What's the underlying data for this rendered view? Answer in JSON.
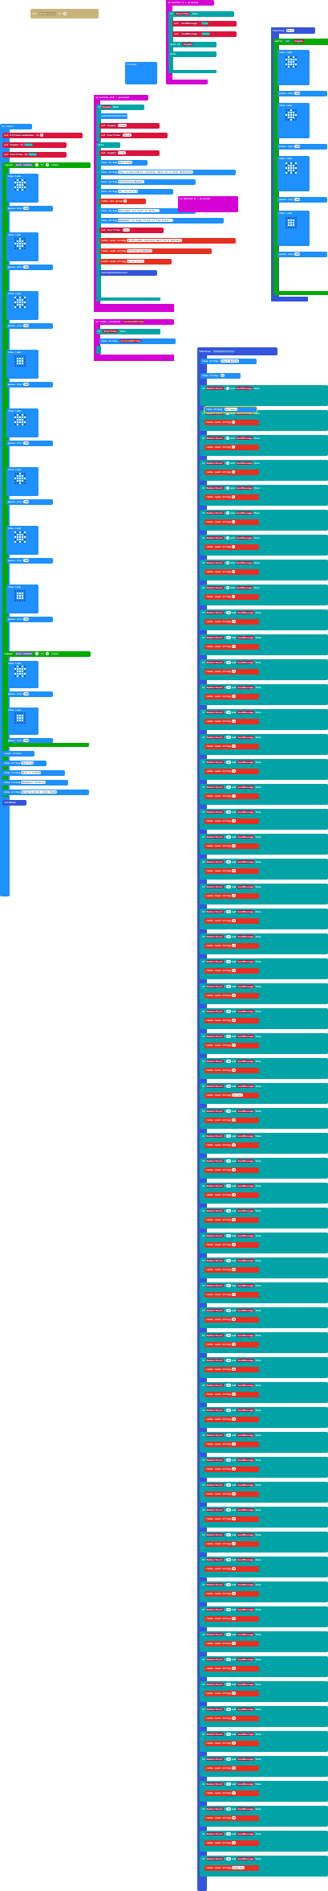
{
  "set_block": {
    "kw": "set",
    "var": "NumberCheck",
    "to": "to",
    "val": "0"
  },
  "on_start": {
    "header": "on start",
    "sets": [
      {
        "kw": "set",
        "var": "HitTheGreenNumber",
        "val": "0"
      },
      {
        "kw": "set",
        "var": "Ingame",
        "val": "false"
      },
      {
        "kw": "set",
        "var": "StartTime",
        "val": "false"
      }
    ],
    "repeat1": {
      "kw": "repeat",
      "var": "pick random",
      "from": "1",
      "to": "to",
      "val": "5",
      "times": "times",
      "do": "do"
    },
    "show_leds": "show leds",
    "pause": "pause (ms)",
    "pause_val": "100",
    "repeat2": {
      "kw": "repeat",
      "var": "pick random",
      "from": "1",
      "to": "to",
      "val": "5",
      "times": "times",
      "do": "do"
    },
    "clear": "clear screen",
    "strings": [
      {
        "kw": "show string",
        "val": "Starting"
      },
      {
        "kw": "show string",
        "val": "Wait a little"
      },
      {
        "kw": "show string",
        "val": "Remember buttons"
      },
      {
        "kw": "show string",
        "val": "Being a quick code check"
      }
    ],
    "call": "call",
    "call_fn": "Menu"
  },
  "on_button_a": {
    "header": "on button A ▾ pressed",
    "if": "if",
    "cond": "StartTime",
    "then": "then",
    "sets": [
      {
        "kw": "set",
        "var": "SendMessage",
        "val": "true"
      },
      {
        "kw": "set",
        "var": "SendMessage",
        "val": "false"
      }
    ],
    "else": "else",
    "else_if": "if",
    "ingame": "Ingame",
    "else2": "else"
  },
  "forever": {
    "header": "forever"
  },
  "menu_fn": {
    "header": "function",
    "name": "Menu",
    "while": "while",
    "not": "not",
    "var": "Ingame",
    "do": "do",
    "show_leds": "show leds",
    "pause": "pause (ms)",
    "pause_val": "100"
  },
  "on_button_ab": {
    "header": "on button A+B ▾ pressed",
    "if": "if",
    "var": "Ingame",
    "then": "then",
    "call": "call",
    "call_fn": "ChecksFunction",
    "sets": [
      {
        "kw": "set",
        "var": "Ingame",
        "val": "false"
      },
      {
        "kw": "set",
        "var": "StartTime",
        "val": "false"
      }
    ],
    "else": "else",
    "set_ingame": {
      "kw": "set",
      "var": "Ingame",
      "val": "true"
    },
    "strings": [
      {
        "kw": "show string",
        "val": "Wait time"
      },
      {
        "kw": "show string",
        "val": "then ss-MicroBits running. Wait on a size detection"
      },
      {
        "kw": "show string",
        "val": "HitTheGreenNumber"
      },
      {
        "kw": "show string",
        "val": "Ok, up to 1 d"
      }
    ],
    "radio_group": "radio set group",
    "radio_group_val": "1",
    "strings2": [
      {
        "kw": "show string",
        "val": "Messages are sent in bits..."
      },
      {
        "kw": "show string",
        "val": "Remember to keep track of the bits..."
      }
    ],
    "set_start": {
      "kw": "set",
      "var": "StartTime",
      "val": "true"
    },
    "radio_sends": [
      {
        "kw": "radio send string",
        "val": "Ok MicroBit Running Wait On A Detract"
      },
      {
        "kw": "radio send string",
        "val": "HitTheGreenNumber"
      },
      {
        "kw": "radio send string",
        "val": "Go on cycle"
      }
    ]
  },
  "on_button_b": {
    "header": "on button B ▾ pressed"
  },
  "on_radio": {
    "header": "on radio received",
    "param": "receivedString",
    "if": "if",
    "var": "StartTime",
    "then": "then",
    "show": "show string",
    "val": "receivedString"
  },
  "checks_fn": {
    "header": "function",
    "name": "ChecksFunction",
    "show_number": "show string",
    "show_val": "Start Button",
    "show2": "show string",
    "show2_val": "Go",
    "if": "if",
    "var": "NumberCheck",
    "eq": "=",
    "and": "and",
    "msg": "SendMessage",
    "then": "then",
    "say": "radio send string",
    "mid_string": "show string",
    "mid_val": "Success!",
    "rows": [
      {
        "n": "1",
        "s": "1"
      },
      {
        "n": "2",
        "s": "2"
      },
      {
        "n": "3",
        "s": "3"
      },
      {
        "n": "4",
        "s": "4"
      },
      {
        "n": "5",
        "s": "5"
      },
      {
        "n": "6",
        "s": "6"
      },
      {
        "n": "7",
        "s": "7"
      },
      {
        "n": "8",
        "s": "8"
      },
      {
        "n": "9",
        "s": "9"
      },
      {
        "n": "10",
        "s": "10"
      },
      {
        "n": "11",
        "s": "11"
      },
      {
        "n": "12",
        "s": "12"
      },
      {
        "n": "13",
        "s": "13"
      },
      {
        "n": "14",
        "s": "14"
      },
      {
        "n": "15",
        "s": "15"
      },
      {
        "n": "16",
        "s": "16"
      },
      {
        "n": "17",
        "s": "17"
      },
      {
        "n": "18",
        "s": "18"
      },
      {
        "n": "19",
        "s": "19"
      },
      {
        "n": "20",
        "s": "20"
      },
      {
        "n": "21",
        "s": "21"
      },
      {
        "n": "22",
        "s": "22"
      },
      {
        "n": "23",
        "s": "23"
      },
      {
        "n": "24",
        "s": "24"
      },
      {
        "n": "25",
        "s": "25"
      },
      {
        "n": "26",
        "s": "26"
      },
      {
        "n": "27",
        "s": "27"
      },
      {
        "n": "28",
        "s": "28"
      },
      {
        "n": "29",
        "s": "Correct"
      },
      {
        "n": "30",
        "s": "30"
      },
      {
        "n": "31",
        "s": "31"
      },
      {
        "n": "32",
        "s": "32"
      },
      {
        "n": "33",
        "s": "33"
      },
      {
        "n": "34",
        "s": "34"
      },
      {
        "n": "35",
        "s": "35"
      },
      {
        "n": "36",
        "s": "36"
      },
      {
        "n": "37",
        "s": "37"
      },
      {
        "n": "38",
        "s": "38"
      },
      {
        "n": "39",
        "s": "39"
      },
      {
        "n": "40",
        "s": "40"
      },
      {
        "n": "41",
        "s": "41"
      },
      {
        "n": "42",
        "s": "42"
      },
      {
        "n": "43",
        "s": "43"
      },
      {
        "n": "44",
        "s": "44"
      },
      {
        "n": "45",
        "s": "45"
      },
      {
        "n": "46",
        "s": "46"
      },
      {
        "n": "47",
        "s": "47"
      },
      {
        "n": "48",
        "s": "48"
      },
      {
        "n": "49",
        "s": "49"
      },
      {
        "n": "50",
        "s": "50"
      },
      {
        "n": "51",
        "s": "51"
      },
      {
        "n": "52",
        "s": "52"
      },
      {
        "n": "53",
        "s": "53"
      },
      {
        "n": "54",
        "s": "54"
      },
      {
        "n": "55",
        "s": "55"
      },
      {
        "n": "56",
        "s": "56"
      },
      {
        "n": "57",
        "s": "57"
      },
      {
        "n": "58",
        "s": "58"
      },
      {
        "n": "59",
        "s": "59"
      },
      {
        "n": "60",
        "s": "Complete"
      }
    ]
  },
  "colors": {
    "variables": "#dc143c",
    "basic": "#1e90ff",
    "logic": "#00a4a6",
    "loops": "#00aa00",
    "input": "#d400d4",
    "radio": "#e63022",
    "functions": "#3455db"
  }
}
